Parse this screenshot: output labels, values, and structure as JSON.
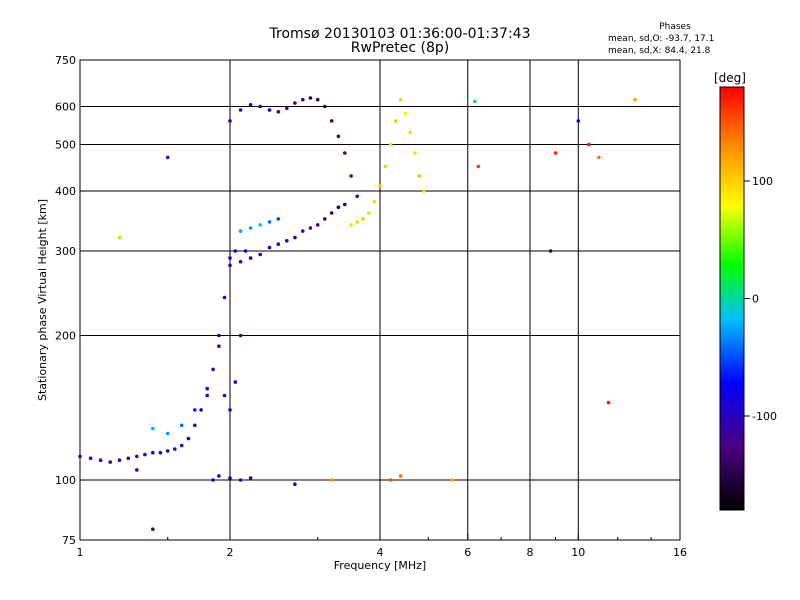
{
  "header": {
    "title_line1": "Tromsø 20130103 01:36:00-01:37:43",
    "title_line2": "RwPretec (8p)",
    "phases_heading": "Phases",
    "phases_o": "mean, sd,O: -93.7, 17.1",
    "phases_x": "mean, sd,X:  84.4, 21.8"
  },
  "colorbar": {
    "label": "[deg]",
    "ticks": [
      {
        "label": "100",
        "value": 100
      },
      {
        "label": "0",
        "value": 0
      },
      {
        "label": "-100",
        "value": -100
      }
    ],
    "range": [
      -180,
      180
    ],
    "scale_colors": [
      "#000000",
      "#4b0082",
      "#0000ff",
      "#00bfff",
      "#00ff00",
      "#ffff00",
      "#ff8c00",
      "#ff0000"
    ]
  },
  "chart_data": {
    "type": "scatter",
    "xlabel": "Frequency [MHz]",
    "ylabel": "Stationary phase Virtual Height [km]",
    "xscale": "log",
    "yscale": "log",
    "xlim": [
      1,
      16
    ],
    "ylim": [
      75,
      750
    ],
    "x_ticks": [
      {
        "label": "1",
        "value": 1
      },
      {
        "label": "2",
        "value": 2
      },
      {
        "label": "4",
        "value": 4
      },
      {
        "label": "6",
        "value": 6
      },
      {
        "label": "8",
        "value": 8
      },
      {
        "label": "10",
        "value": 10
      },
      {
        "label": "16",
        "value": 16
      }
    ],
    "y_ticks": [
      {
        "label": "75",
        "value": 75
      },
      {
        "label": "100",
        "value": 100
      },
      {
        "label": "200",
        "value": 200
      },
      {
        "label": "300",
        "value": 300
      },
      {
        "label": "400",
        "value": 400
      },
      {
        "label": "500",
        "value": 500
      },
      {
        "label": "600",
        "value": 600
      },
      {
        "label": "750",
        "value": 750
      }
    ],
    "gridlines_x": [
      2,
      4,
      6,
      8,
      10
    ],
    "gridlines_y": [
      100,
      200,
      300,
      400,
      500,
      600
    ],
    "grid": true,
    "color_variable": "phase [deg]",
    "series": [
      {
        "values": [
          [
            1.0,
            112,
            -110
          ],
          [
            1.05,
            111,
            -100
          ],
          [
            1.1,
            110,
            -90
          ],
          [
            1.15,
            109,
            -105
          ],
          [
            1.2,
            110,
            -95
          ],
          [
            1.25,
            111,
            -100
          ],
          [
            1.3,
            112,
            -110
          ],
          [
            1.35,
            113,
            -95
          ],
          [
            1.4,
            114,
            -100
          ],
          [
            1.45,
            114,
            -90
          ],
          [
            1.5,
            115,
            -105
          ],
          [
            1.55,
            116,
            -100
          ],
          [
            1.6,
            118,
            -95
          ],
          [
            1.65,
            122,
            -100
          ],
          [
            1.7,
            130,
            -105
          ],
          [
            1.75,
            140,
            -100
          ],
          [
            1.8,
            150,
            -95
          ],
          [
            1.85,
            170,
            -100
          ],
          [
            1.9,
            200,
            -105
          ],
          [
            1.95,
            240,
            -100
          ],
          [
            2.0,
            280,
            -95
          ],
          [
            2.05,
            300,
            -100
          ],
          [
            2.1,
            330,
            -105
          ],
          [
            2.15,
            300,
            -90
          ],
          [
            2.1,
            200,
            -100
          ],
          [
            2.05,
            160,
            -95
          ],
          [
            2.0,
            140,
            -100
          ],
          [
            1.95,
            150,
            -105
          ],
          [
            1.9,
            190,
            -100
          ]
        ]
      },
      {
        "values": [
          [
            1.85,
            100,
            -95
          ],
          [
            1.9,
            102,
            -100
          ],
          [
            2.0,
            101,
            -90
          ],
          [
            2.1,
            100,
            -95
          ],
          [
            2.2,
            101,
            -100
          ]
        ]
      },
      {
        "values": [
          [
            1.4,
            128,
            -20
          ],
          [
            1.5,
            125,
            -30
          ],
          [
            1.6,
            130,
            -40
          ],
          [
            1.7,
            140,
            -60
          ],
          [
            1.8,
            155,
            -70
          ]
        ]
      },
      {
        "values": [
          [
            2.0,
            290,
            -90
          ],
          [
            2.1,
            285,
            -95
          ],
          [
            2.2,
            290,
            -100
          ],
          [
            2.3,
            295,
            -105
          ],
          [
            2.4,
            305,
            -100
          ],
          [
            2.5,
            310,
            -95
          ],
          [
            2.6,
            315,
            -90
          ],
          [
            2.7,
            320,
            -100
          ],
          [
            2.8,
            330,
            -110
          ],
          [
            2.9,
            335,
            -120
          ],
          [
            3.0,
            340,
            -130
          ],
          [
            3.1,
            350,
            -140
          ],
          [
            3.2,
            360,
            -145
          ],
          [
            3.3,
            370,
            -150
          ],
          [
            3.4,
            375,
            -145
          ]
        ]
      },
      {
        "values": [
          [
            2.1,
            330,
            -20
          ],
          [
            2.2,
            335,
            -30
          ],
          [
            2.3,
            340,
            -10
          ],
          [
            2.4,
            345,
            -40
          ],
          [
            2.5,
            350,
            -50
          ]
        ]
      },
      {
        "values": [
          [
            2.0,
            560,
            -100
          ],
          [
            2.1,
            590,
            -95
          ],
          [
            2.2,
            605,
            -105
          ],
          [
            2.3,
            600,
            -100
          ],
          [
            2.4,
            590,
            -95
          ],
          [
            2.5,
            585,
            -110
          ],
          [
            2.6,
            595,
            -120
          ],
          [
            2.7,
            610,
            -130
          ],
          [
            2.8,
            620,
            -140
          ],
          [
            2.9,
            625,
            -150
          ],
          [
            3.0,
            620,
            -145
          ],
          [
            3.1,
            600,
            -140
          ],
          [
            3.2,
            560,
            -135
          ],
          [
            3.3,
            520,
            -130
          ],
          [
            3.4,
            480,
            -125
          ],
          [
            3.5,
            430,
            -120
          ],
          [
            3.6,
            390,
            -115
          ]
        ]
      },
      {
        "values": [
          [
            3.5,
            340,
            95
          ],
          [
            3.6,
            345,
            100
          ],
          [
            3.7,
            350,
            105
          ],
          [
            3.8,
            360,
            100
          ],
          [
            3.9,
            380,
            95
          ],
          [
            4.0,
            410,
            110
          ],
          [
            4.1,
            450,
            100
          ],
          [
            4.2,
            500,
            95
          ],
          [
            4.3,
            560,
            105
          ],
          [
            4.4,
            620,
            100
          ],
          [
            4.5,
            580,
            90
          ],
          [
            4.6,
            530,
            100
          ],
          [
            4.7,
            480,
            95
          ],
          [
            4.8,
            430,
            110
          ],
          [
            4.9,
            400,
            100
          ]
        ]
      },
      {
        "values": [
          [
            4.2,
            100,
            150
          ],
          [
            4.4,
            102,
            140
          ],
          [
            5.6,
            100,
            120
          ],
          [
            6.2,
            615,
            10
          ],
          [
            6.3,
            450,
            160
          ],
          [
            9.0,
            480,
            170
          ],
          [
            10.0,
            560,
            -95
          ],
          [
            10.5,
            500,
            175
          ],
          [
            11.0,
            470,
            140
          ],
          [
            11.5,
            145,
            170
          ],
          [
            13.0,
            620,
            120
          ],
          [
            3.2,
            100,
            130
          ],
          [
            2.7,
            98,
            -110
          ],
          [
            1.2,
            320,
            60
          ],
          [
            1.3,
            105,
            -95
          ],
          [
            1.4,
            79,
            -120
          ],
          [
            1.5,
            470,
            -100
          ],
          [
            8.8,
            300,
            -150
          ]
        ]
      }
    ]
  }
}
